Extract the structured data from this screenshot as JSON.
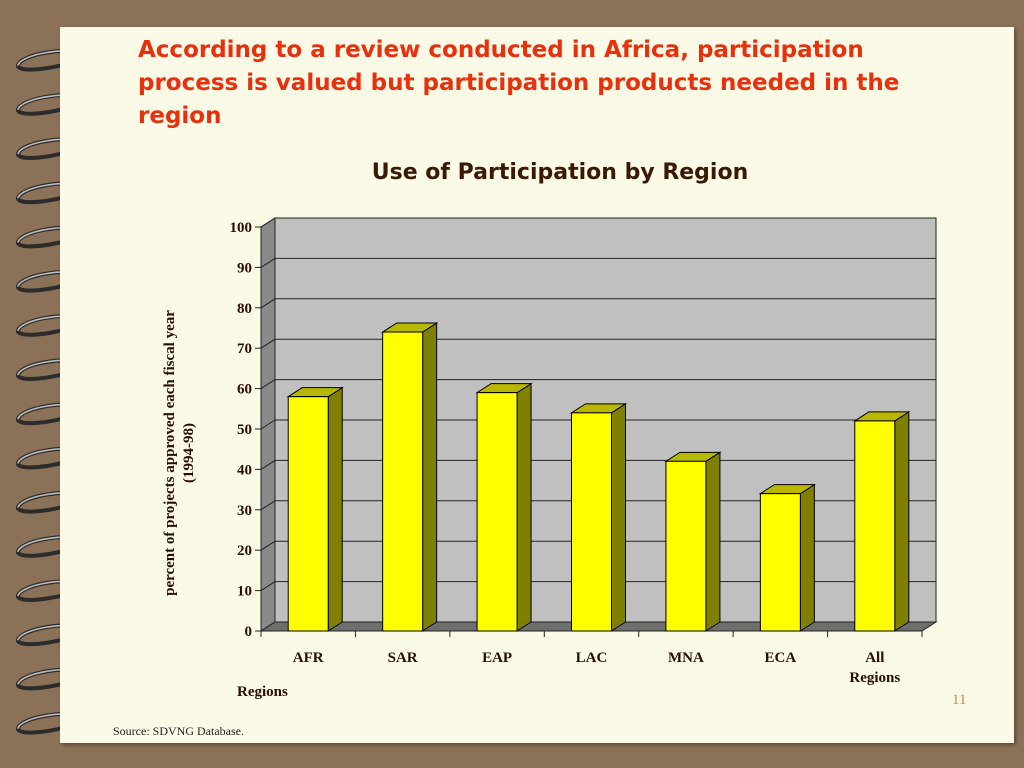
{
  "slide": {
    "title": "According to a review conducted in Africa, participation process is valued but participation products needed in the region",
    "source": "Source: SDVNG Database.",
    "page_number": "11"
  },
  "chart_data": {
    "type": "bar",
    "title": "Use of Participation by Region",
    "xlabel": "Regions",
    "ylabel_lines": [
      "percent of projects approved each fiscal year",
      "(1994-98)"
    ],
    "categories": [
      [
        "AFR"
      ],
      [
        "SAR"
      ],
      [
        "EAP"
      ],
      [
        "LAC"
      ],
      [
        "MNA"
      ],
      [
        "ECA"
      ],
      [
        "All",
        "Regions"
      ]
    ],
    "values": [
      58,
      74,
      59,
      54,
      42,
      34,
      52
    ],
    "ylim": [
      0,
      100
    ],
    "yticks": [
      0,
      10,
      20,
      30,
      40,
      50,
      60,
      70,
      80,
      90,
      100
    ],
    "grid": true,
    "legend": "none",
    "colors": {
      "bar_front": "#ffff00",
      "bar_side": "#808000",
      "bar_top": "#b8b800",
      "plot_back": "#c0c0c0",
      "plot_side": "#8a8a8a",
      "plot_floor": "#6e6e6e"
    }
  }
}
